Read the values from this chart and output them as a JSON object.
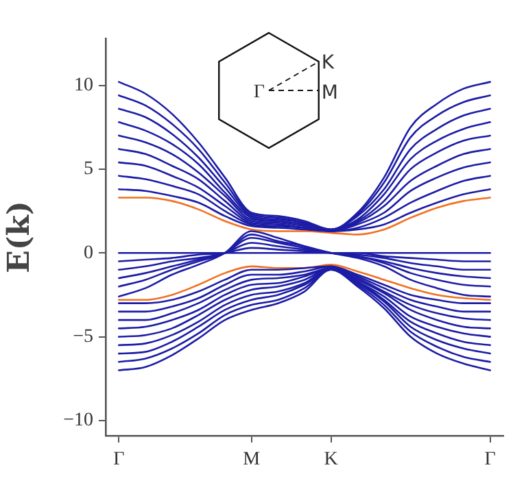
{
  "chart_data": {
    "type": "line",
    "ylabel": "E(k)",
    "legend": false,
    "marker": "none",
    "line_style": "solid",
    "annotations": [
      "Γ",
      "K",
      "M"
    ],
    "ylim": [
      -10.9,
      12.8
    ],
    "yticks": [
      {
        "value": -10,
        "label": "−10"
      },
      {
        "value": -5,
        "label": "−5"
      },
      0,
      5,
      10
    ],
    "categories": [
      "Γ",
      null,
      null,
      null,
      null,
      "M",
      null,
      null,
      "K",
      null,
      null,
      null,
      null,
      null,
      "Γ"
    ],
    "series": [
      {
        "color": "#1c1ca6",
        "values": [
          3.8,
          3.7,
          3.4,
          3.0,
          2.2,
          1.6,
          1.5,
          1.4,
          1.3,
          1.4,
          1.7,
          2.4,
          3.0,
          3.5,
          3.8
        ]
      },
      {
        "color": "#1c1ca6",
        "values": [
          4.6,
          4.4,
          4.0,
          3.5,
          2.5,
          1.7,
          1.6,
          1.5,
          1.3,
          1.5,
          2.1,
          3.0,
          3.7,
          4.3,
          4.6
        ]
      },
      {
        "color": "#1c1ca6",
        "values": [
          5.4,
          5.2,
          4.6,
          3.9,
          2.8,
          1.8,
          1.7,
          1.5,
          1.3,
          1.7,
          2.4,
          3.7,
          4.5,
          5.1,
          5.4
        ]
      },
      {
        "color": "#1c1ca6",
        "values": [
          6.2,
          5.9,
          5.2,
          4.4,
          3.1,
          1.9,
          1.8,
          1.6,
          1.3,
          1.8,
          2.8,
          4.3,
          5.2,
          5.9,
          6.2
        ]
      },
      {
        "color": "#1c1ca6",
        "values": [
          7.0,
          6.6,
          5.9,
          4.8,
          3.4,
          2.0,
          1.9,
          1.7,
          1.4,
          1.9,
          3.1,
          5.0,
          6.0,
          6.7,
          7.0
        ]
      },
      {
        "color": "#1c1ca6",
        "values": [
          7.8,
          7.3,
          6.5,
          5.3,
          3.6,
          2.1,
          1.9,
          1.7,
          1.4,
          2.0,
          3.5,
          5.6,
          6.7,
          7.4,
          7.8
        ]
      },
      {
        "color": "#1c1ca6",
        "values": [
          8.6,
          8.1,
          7.1,
          5.7,
          3.9,
          2.2,
          2.0,
          1.8,
          1.4,
          2.2,
          3.8,
          6.2,
          7.4,
          8.2,
          8.6
        ]
      },
      {
        "color": "#1c1ca6",
        "values": [
          9.4,
          8.8,
          7.7,
          6.2,
          4.2,
          2.3,
          2.1,
          1.8,
          1.4,
          2.3,
          4.2,
          6.9,
          8.2,
          9.0,
          9.4
        ]
      },
      {
        "color": "#1c1ca6",
        "values": [
          10.2,
          9.5,
          8.3,
          6.6,
          4.5,
          2.4,
          2.2,
          1.9,
          1.4,
          2.4,
          4.5,
          7.5,
          8.9,
          9.8,
          10.2
        ]
      },
      {
        "color": "#1c1ca6",
        "values": [
          0,
          0,
          0,
          0,
          0,
          0,
          0,
          0,
          0,
          0,
          0,
          0,
          0,
          0,
          0
        ]
      },
      {
        "color": "#1c1ca6",
        "values": [
          -0.5,
          -0.4,
          -0.3,
          -0.1,
          0,
          0.3,
          0.2,
          0.1,
          0,
          0,
          -0.2,
          -0.3,
          -0.4,
          -0.5,
          -0.5
        ]
      },
      {
        "color": "#1c1ca6",
        "values": [
          -1.0,
          -0.8,
          -0.5,
          -0.3,
          0,
          0.6,
          0.4,
          0.2,
          0,
          -0.1,
          -0.3,
          -0.6,
          -0.8,
          -1.0,
          -1.0
        ]
      },
      {
        "color": "#1c1ca6",
        "values": [
          -1.5,
          -1.2,
          -0.8,
          -0.4,
          0,
          0.9,
          0.6,
          0.3,
          0,
          -0.2,
          -0.5,
          -0.9,
          -1.2,
          -1.4,
          -1.5
        ]
      },
      {
        "color": "#1c1ca6",
        "values": [
          -2.0,
          -1.6,
          -1.0,
          -0.5,
          0,
          1.1,
          0.7,
          0.4,
          0,
          -0.2,
          -0.6,
          -1.2,
          -1.6,
          -1.9,
          -2.0
        ]
      },
      {
        "color": "#1c1ca6",
        "values": [
          -2.6,
          -2.1,
          -1.3,
          -0.7,
          0,
          1.3,
          0.9,
          0.4,
          0,
          -0.3,
          -0.8,
          -1.6,
          -2.1,
          -2.5,
          -2.6
        ]
      },
      {
        "color": "#1c1ca6",
        "values": [
          -3.0,
          -3.0,
          -2.8,
          -2.3,
          -1.6,
          -1.0,
          -1.0,
          -0.9,
          -0.8,
          -1.3,
          -1.9,
          -2.5,
          -2.8,
          -3.0,
          -3.0
        ]
      },
      {
        "color": "#1c1ca6",
        "values": [
          -3.5,
          -3.5,
          -3.2,
          -2.7,
          -1.9,
          -1.3,
          -1.3,
          -1.1,
          -0.8,
          -1.4,
          -2.1,
          -2.8,
          -3.2,
          -3.5,
          -3.5
        ]
      },
      {
        "color": "#1c1ca6",
        "values": [
          -4.0,
          -4.0,
          -3.6,
          -3.0,
          -2.2,
          -1.6,
          -1.5,
          -1.3,
          -0.9,
          -1.5,
          -2.3,
          -3.1,
          -3.6,
          -3.9,
          -4.0
        ]
      },
      {
        "color": "#1c1ca6",
        "values": [
          -4.5,
          -4.4,
          -4.0,
          -3.4,
          -2.5,
          -1.9,
          -1.8,
          -1.4,
          -0.9,
          -1.6,
          -2.4,
          -3.4,
          -4.0,
          -4.4,
          -4.5
        ]
      },
      {
        "color": "#1c1ca6",
        "values": [
          -5.0,
          -4.9,
          -4.5,
          -3.7,
          -2.8,
          -2.2,
          -2.0,
          -1.6,
          -0.9,
          -1.7,
          -2.6,
          -3.8,
          -4.4,
          -4.8,
          -5.0
        ]
      },
      {
        "color": "#1c1ca6",
        "values": [
          -5.5,
          -5.4,
          -4.9,
          -4.1,
          -3.1,
          -2.5,
          -2.3,
          -1.8,
          -0.9,
          -1.7,
          -2.8,
          -4.1,
          -4.8,
          -5.3,
          -5.5
        ]
      },
      {
        "color": "#1c1ca6",
        "values": [
          -6.0,
          -5.9,
          -5.3,
          -4.4,
          -3.4,
          -2.8,
          -2.5,
          -1.9,
          -1.0,
          -1.8,
          -2.9,
          -4.4,
          -5.2,
          -5.7,
          -6.0
        ]
      },
      {
        "color": "#1c1ca6",
        "values": [
          -6.5,
          -6.3,
          -5.7,
          -4.8,
          -3.7,
          -3.1,
          -2.8,
          -2.1,
          -1.0,
          -1.9,
          -3.1,
          -4.7,
          -5.6,
          -6.2,
          -6.5
        ]
      },
      {
        "color": "#1c1ca6",
        "values": [
          -7.0,
          -6.8,
          -6.1,
          -5.1,
          -4.0,
          -3.4,
          -3.0,
          -2.3,
          -1.0,
          -2.0,
          -3.3,
          -5.0,
          -6.0,
          -6.6,
          -7.0
        ]
      },
      {
        "color": "#f07020",
        "values": [
          3.3,
          3.3,
          3.1,
          2.6,
          1.9,
          1.4,
          1.3,
          1.3,
          1.2,
          1.1,
          1.4,
          2.1,
          2.7,
          3.1,
          3.3
        ]
      },
      {
        "color": "#f07020",
        "values": [
          -2.8,
          -2.8,
          -2.5,
          -1.9,
          -1.2,
          -0.8,
          -0.9,
          -0.9,
          -0.7,
          -1.1,
          -1.6,
          -2.1,
          -2.5,
          -2.7,
          -2.8
        ]
      }
    ]
  }
}
